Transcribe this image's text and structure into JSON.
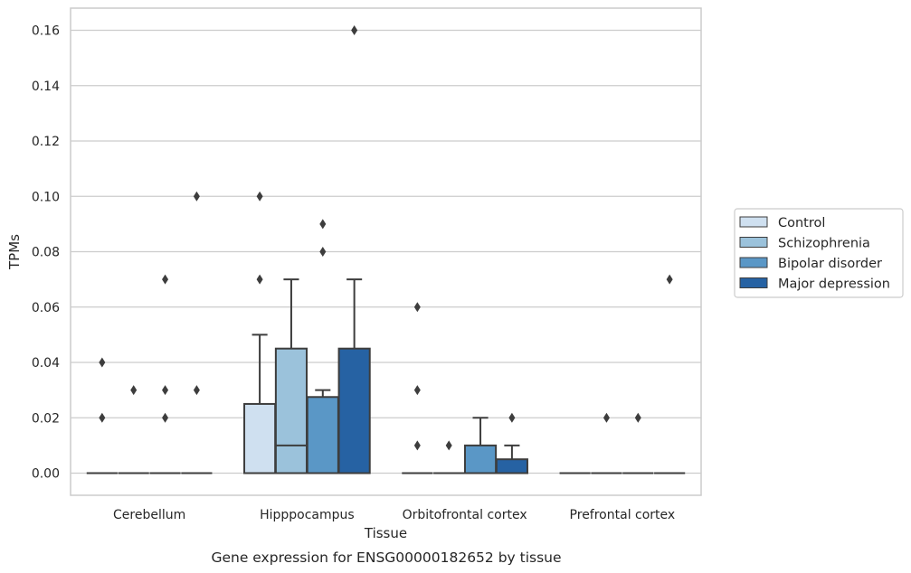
{
  "caption": "Gene expression for ENSG00000182652 by tissue",
  "chart_data": {
    "type": "box",
    "xlabel": "Tissue",
    "ylabel": "TPMs",
    "ylim": [
      -0.008,
      0.168
    ],
    "yticks": [
      0.0,
      0.02,
      0.04,
      0.06,
      0.08,
      0.1,
      0.12,
      0.14,
      0.16
    ],
    "ytick_labels": [
      "0.00",
      "0.02",
      "0.04",
      "0.06",
      "0.08",
      "0.10",
      "0.12",
      "0.14",
      "0.16"
    ],
    "grid": "horizontal",
    "legend_position": "right",
    "categories": [
      "Cerebellum",
      "Hipppocampus",
      "Orbitofrontal cortex",
      "Prefrontal cortex"
    ],
    "series": [
      {
        "name": "Control",
        "color": "#cfe0f0",
        "boxes": [
          {
            "q1": 0.0,
            "median": 0.0,
            "q3": 0.0,
            "whislo": 0.0,
            "whishi": 0.0,
            "fliers": [
              0.02,
              0.04
            ]
          },
          {
            "q1": 0.0,
            "median": 0.0,
            "q3": 0.025,
            "whislo": 0.0,
            "whishi": 0.05,
            "fliers": [
              0.07,
              0.1
            ]
          },
          {
            "q1": 0.0,
            "median": 0.0,
            "q3": 0.0,
            "whislo": 0.0,
            "whishi": 0.0,
            "fliers": [
              0.01,
              0.03,
              0.06
            ]
          },
          {
            "q1": 0.0,
            "median": 0.0,
            "q3": 0.0,
            "whislo": 0.0,
            "whishi": 0.0,
            "fliers": []
          }
        ]
      },
      {
        "name": "Schizophrenia",
        "color": "#9bc2db",
        "boxes": [
          {
            "q1": 0.0,
            "median": 0.0,
            "q3": 0.0,
            "whislo": 0.0,
            "whishi": 0.0,
            "fliers": [
              0.03
            ]
          },
          {
            "q1": 0.0,
            "median": 0.01,
            "q3": 0.045,
            "whislo": 0.0,
            "whishi": 0.07,
            "fliers": []
          },
          {
            "q1": 0.0,
            "median": 0.0,
            "q3": 0.0,
            "whislo": 0.0,
            "whishi": 0.0,
            "fliers": [
              0.01
            ]
          },
          {
            "q1": 0.0,
            "median": 0.0,
            "q3": 0.0,
            "whislo": 0.0,
            "whishi": 0.0,
            "fliers": [
              0.02
            ]
          }
        ]
      },
      {
        "name": "Bipolar disorder",
        "color": "#5a97c6",
        "boxes": [
          {
            "q1": 0.0,
            "median": 0.0,
            "q3": 0.0,
            "whislo": 0.0,
            "whishi": 0.0,
            "fliers": [
              0.02,
              0.03,
              0.07
            ]
          },
          {
            "q1": 0.0,
            "median": 0.0,
            "q3": 0.0275,
            "whislo": 0.0,
            "whishi": 0.03,
            "fliers": [
              0.08,
              0.09
            ]
          },
          {
            "q1": 0.0,
            "median": 0.0,
            "q3": 0.01,
            "whislo": 0.0,
            "whishi": 0.02,
            "fliers": []
          },
          {
            "q1": 0.0,
            "median": 0.0,
            "q3": 0.0,
            "whislo": 0.0,
            "whishi": 0.0,
            "fliers": [
              0.02
            ]
          }
        ]
      },
      {
        "name": "Major depression",
        "color": "#2662a3",
        "boxes": [
          {
            "q1": 0.0,
            "median": 0.0,
            "q3": 0.0,
            "whislo": 0.0,
            "whishi": 0.0,
            "fliers": [
              0.03,
              0.1
            ]
          },
          {
            "q1": 0.0,
            "median": 0.0,
            "q3": 0.045,
            "whislo": 0.0,
            "whishi": 0.07,
            "fliers": [
              0.16
            ]
          },
          {
            "q1": 0.0,
            "median": 0.0,
            "q3": 0.005,
            "whislo": 0.0,
            "whishi": 0.01,
            "fliers": [
              0.02
            ]
          },
          {
            "q1": 0.0,
            "median": 0.0,
            "q3": 0.0,
            "whislo": 0.0,
            "whishi": 0.0,
            "fliers": [
              0.07
            ]
          }
        ]
      }
    ]
  }
}
